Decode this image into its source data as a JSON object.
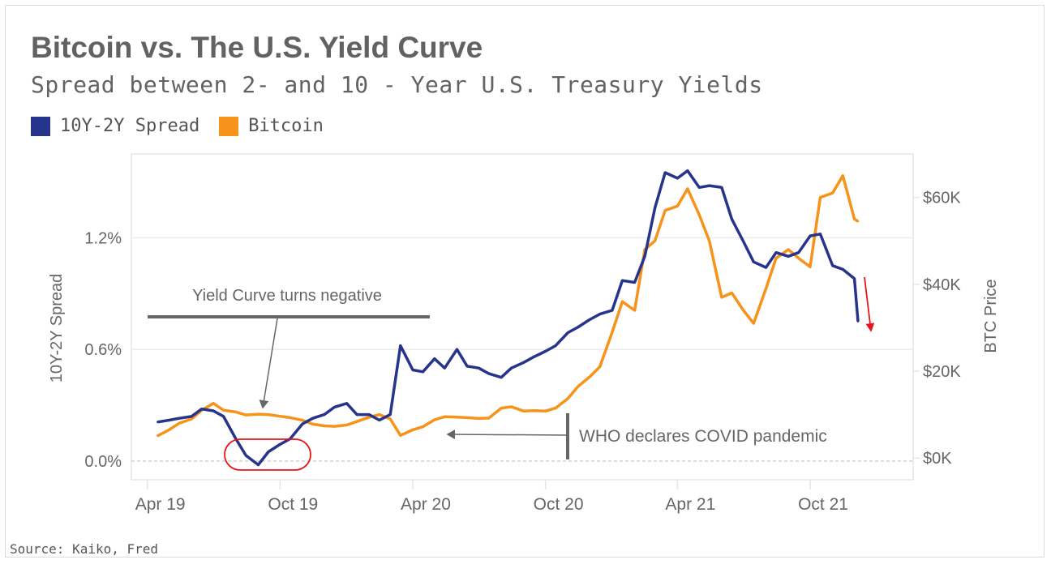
{
  "title": "Bitcoin vs. The U.S. Yield Curve",
  "subtitle": "Spread between 2- and 10 - Year U.S. Treasury Yields",
  "source": "Source: Kaiko, Fred",
  "legend": [
    {
      "label": "10Y-2Y Spread",
      "color": "#27348b"
    },
    {
      "label": "Bitcoin",
      "color": "#f7931a"
    }
  ],
  "annotations": {
    "yield_negative": "Yield Curve turns negative",
    "covid": "WHO declares COVID pandemic",
    "highlight_color": "#e8141b"
  },
  "chart_data": {
    "type": "line",
    "title": "Bitcoin vs. The U.S. Yield Curve",
    "subtitle": "Spread between 2- and 10 - Year U.S. Treasury Yields",
    "ylabel_left": "10Y-2Y Spread",
    "ylabel_right": "BTC Price",
    "ylim_left": [
      -0.1,
      1.65
    ],
    "ylim_right": [
      -5,
      70
    ],
    "yticks_left": [
      {
        "v": 0,
        "label": "0.0%"
      },
      {
        "v": 0.6,
        "label": "0.6%"
      },
      {
        "v": 1.2,
        "label": "1.2%"
      }
    ],
    "yticks_right": [
      {
        "v": 0,
        "label": "$0K"
      },
      {
        "v": 20,
        "label": "$20K"
      },
      {
        "v": 40,
        "label": "$40K"
      },
      {
        "v": 60,
        "label": "$60K"
      }
    ],
    "xticks": [
      {
        "d": "2019-04-01",
        "label": "Apr 19"
      },
      {
        "d": "2019-10-01",
        "label": "Oct 19"
      },
      {
        "d": "2020-04-01",
        "label": "Apr 20"
      },
      {
        "d": "2020-10-01",
        "label": "Oct 20"
      },
      {
        "d": "2021-04-01",
        "label": "Apr 21"
      },
      {
        "d": "2021-10-01",
        "label": "Oct 21"
      }
    ],
    "xlim": [
      "2019-03-10",
      "2022-02-20"
    ],
    "grid": true,
    "legend_position": "top-left",
    "x": [
      "2019-04-15",
      "2019-05-01",
      "2019-05-15",
      "2019-06-01",
      "2019-06-15",
      "2019-07-01",
      "2019-07-15",
      "2019-08-01",
      "2019-08-15",
      "2019-09-01",
      "2019-09-15",
      "2019-10-01",
      "2019-10-15",
      "2019-11-01",
      "2019-11-15",
      "2019-12-01",
      "2019-12-15",
      "2020-01-01",
      "2020-01-15",
      "2020-02-01",
      "2020-02-15",
      "2020-03-01",
      "2020-03-15",
      "2020-04-01",
      "2020-04-15",
      "2020-05-01",
      "2020-05-15",
      "2020-06-01",
      "2020-06-15",
      "2020-07-01",
      "2020-07-15",
      "2020-08-01",
      "2020-08-15",
      "2020-09-01",
      "2020-09-15",
      "2020-10-01",
      "2020-10-15",
      "2020-11-01",
      "2020-11-15",
      "2020-12-01",
      "2020-12-15",
      "2021-01-01",
      "2021-01-15",
      "2021-02-01",
      "2021-02-15",
      "2021-03-01",
      "2021-03-15",
      "2021-04-01",
      "2021-04-15",
      "2021-05-01",
      "2021-05-15",
      "2021-06-01",
      "2021-06-15",
      "2021-07-01",
      "2021-07-15",
      "2021-08-01",
      "2021-08-15",
      "2021-09-01",
      "2021-09-15",
      "2021-10-01",
      "2021-10-15",
      "2021-11-01",
      "2021-11-15",
      "2021-12-01",
      "2021-12-06"
    ],
    "series": [
      {
        "name": "10Y-2Y Spread",
        "axis": "left",
        "unit": "%",
        "color": "#27348b",
        "values": [
          0.21,
          0.22,
          0.23,
          0.24,
          0.28,
          0.27,
          0.24,
          0.12,
          0.03,
          -0.02,
          0.05,
          0.09,
          0.12,
          0.2,
          0.23,
          0.25,
          0.29,
          0.31,
          0.25,
          0.25,
          0.22,
          0.25,
          0.62,
          0.49,
          0.48,
          0.55,
          0.5,
          0.6,
          0.51,
          0.5,
          0.47,
          0.45,
          0.5,
          0.53,
          0.56,
          0.59,
          0.62,
          0.69,
          0.72,
          0.76,
          0.79,
          0.81,
          0.97,
          0.96,
          1.1,
          1.36,
          1.55,
          1.52,
          1.56,
          1.47,
          1.48,
          1.47,
          1.3,
          1.18,
          1.07,
          1.04,
          1.12,
          1.1,
          1.12,
          1.21,
          1.22,
          1.05,
          1.03,
          0.98,
          0.75
        ]
      },
      {
        "name": "Bitcoin",
        "axis": "right",
        "unit": "$K",
        "color": "#f7931a",
        "values": [
          5.1,
          6.5,
          8.0,
          9.0,
          11.0,
          12.6,
          11.0,
          10.6,
          9.9,
          10.1,
          10.0,
          9.6,
          9.3,
          8.7,
          7.8,
          7.4,
          7.3,
          7.6,
          8.4,
          9.4,
          10.0,
          9.0,
          5.2,
          6.5,
          7.2,
          8.8,
          9.5,
          9.4,
          9.3,
          9.1,
          9.2,
          11.5,
          11.8,
          10.8,
          10.9,
          10.8,
          11.5,
          13.7,
          16.5,
          18.7,
          21,
          29,
          36,
          34,
          48,
          50,
          57,
          58,
          62,
          56,
          50,
          37,
          38,
          34,
          31,
          39,
          46,
          48,
          46,
          44,
          60,
          61,
          65,
          55,
          54.5
        ]
      }
    ]
  }
}
